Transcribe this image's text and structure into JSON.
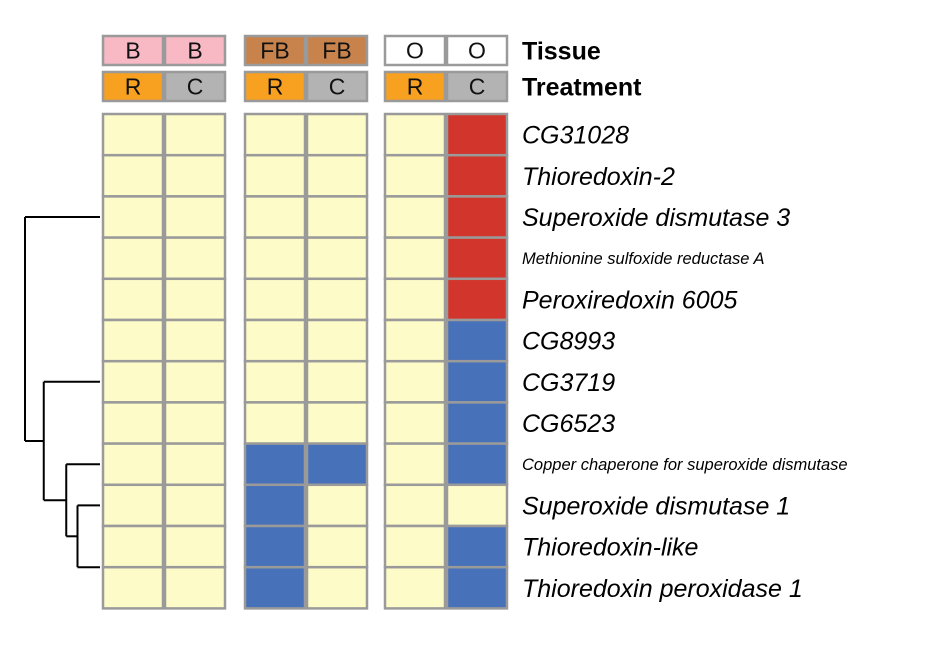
{
  "chart_data": {
    "type": "heatmap",
    "title": "",
    "header_rows": [
      {
        "name": "Tissue",
        "values": [
          "B",
          "B",
          "FB",
          "FB",
          "O",
          "O"
        ]
      },
      {
        "name": "Treatment",
        "values": [
          "R",
          "C",
          "R",
          "C",
          "R",
          "C"
        ]
      }
    ],
    "column_groups": [
      {
        "tissue": "B",
        "columns": [
          0,
          1
        ]
      },
      {
        "tissue": "FB",
        "columns": [
          2,
          3
        ]
      },
      {
        "tissue": "O",
        "columns": [
          4,
          5
        ]
      }
    ],
    "genes": [
      "CG31028",
      "Thioredoxin-2",
      "Superoxide dismutase 3",
      "Methionine sulfoxide reductase A",
      "Peroxiredoxin 6005",
      "CG8993",
      "CG3719",
      "CG6523",
      "Copper chaperone for superoxide dismutase",
      "Superoxide dismutase 1",
      "Thioredoxin-like",
      "Thioredoxin peroxidase 1"
    ],
    "values": [
      [
        0,
        0,
        0,
        0,
        0,
        1
      ],
      [
        0,
        0,
        0,
        0,
        0,
        1
      ],
      [
        0,
        0,
        0,
        0,
        0,
        1
      ],
      [
        0,
        0,
        0,
        0,
        0,
        1
      ],
      [
        0,
        0,
        0,
        0,
        0,
        1
      ],
      [
        0,
        0,
        0,
        0,
        0,
        -1
      ],
      [
        0,
        0,
        0,
        0,
        0,
        -1
      ],
      [
        0,
        0,
        0,
        0,
        0,
        -1
      ],
      [
        0,
        0,
        -1,
        -1,
        0,
        -1
      ],
      [
        0,
        0,
        -1,
        0,
        0,
        0
      ],
      [
        0,
        0,
        -1,
        0,
        0,
        -1
      ],
      [
        0,
        0,
        -1,
        0,
        0,
        -1
      ]
    ],
    "value_colors": {
      "1": "#d2352b",
      "0": "#fdfbc8",
      "-1": "#4771b8"
    },
    "tissue_colors": {
      "B": "#f8b8c4",
      "FB": "#c8834d",
      "O": "#ffffff"
    },
    "treatment_colors": {
      "R": "#f8a020",
      "C": "#b3b3b3"
    },
    "cell_border_color": "#9a9a9a",
    "dendrogram": {
      "merges": [
        {
          "children": [
            "leaf:0-4",
            "cluster:1"
          ],
          "height": 1.0
        },
        {
          "children": [
            "leaf:5-7",
            "cluster:2"
          ],
          "height": 0.75
        },
        {
          "children": [
            "leaf:8",
            "cluster:3"
          ],
          "height": 0.45
        },
        {
          "children": [
            "leaf:9",
            "leaf:10-11"
          ],
          "height": 0.3
        }
      ]
    }
  }
}
